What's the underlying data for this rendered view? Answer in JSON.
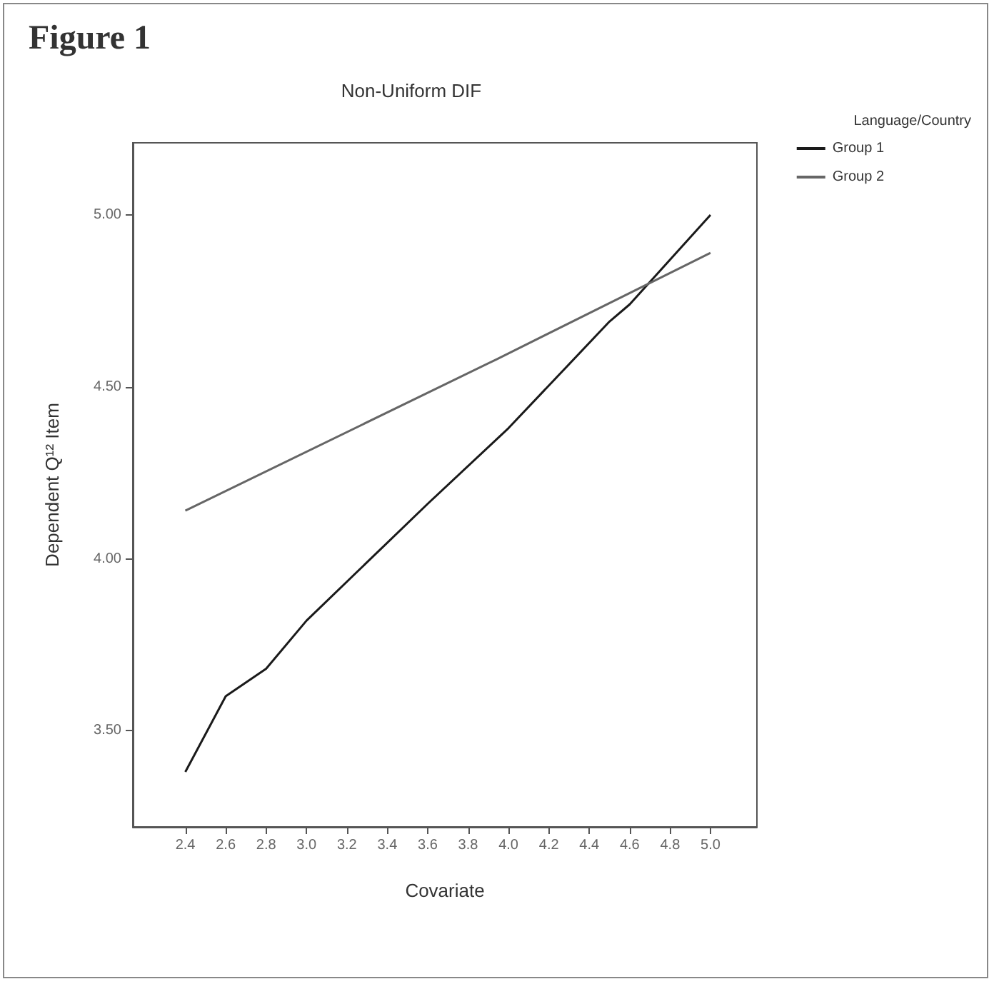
{
  "chart_data": {
    "type": "line",
    "title": "Figure 1",
    "subtitle": "Non-Uniform DIF",
    "xlabel": "Covariate",
    "ylabel": "Dependent Q¹² Item",
    "legend_title": "Language/Country",
    "series": [
      {
        "name": "Group 1",
        "color": "#1a1a1a",
        "x": [
          2.4,
          2.6,
          2.8,
          3.0,
          3.6,
          4.0,
          4.5,
          4.6,
          5.0
        ],
        "values": [
          3.38,
          3.6,
          3.68,
          3.82,
          4.16,
          4.38,
          4.69,
          4.74,
          5.0
        ]
      },
      {
        "name": "Group 2",
        "color": "#666666",
        "x": [
          2.4,
          3.94,
          5.0
        ],
        "values": [
          4.14,
          4.58,
          4.89
        ]
      }
    ],
    "xlim": [
      2.14,
      5.23
    ],
    "xticks": [
      {
        "value": 2.4,
        "label": "2.4"
      },
      {
        "value": 2.6,
        "label": "2.6"
      },
      {
        "value": 2.8,
        "label": "2.8"
      },
      {
        "value": 3.0,
        "label": "3.0"
      },
      {
        "value": 3.2,
        "label": "3.2"
      },
      {
        "value": 3.4,
        "label": "3.4"
      },
      {
        "value": 3.6,
        "label": "3.6"
      },
      {
        "value": 3.8,
        "label": "3.8"
      },
      {
        "value": 4.0,
        "label": "4.0"
      },
      {
        "value": 4.2,
        "label": "4.2"
      },
      {
        "value": 4.4,
        "label": "4.4"
      },
      {
        "value": 4.6,
        "label": "4.6"
      },
      {
        "value": 4.8,
        "label": "4.8"
      },
      {
        "value": 5.0,
        "label": "5.0"
      }
    ],
    "ylim": [
      3.22,
      5.21
    ],
    "yticks": [
      {
        "value": 3.5,
        "label": "3.50"
      },
      {
        "value": 4.0,
        "label": "4.00"
      },
      {
        "value": 4.5,
        "label": "4.50"
      },
      {
        "value": 5.0,
        "label": "5.00"
      }
    ],
    "grid": false,
    "legend": "top right",
    "marker": "none",
    "line_style": "solid"
  }
}
